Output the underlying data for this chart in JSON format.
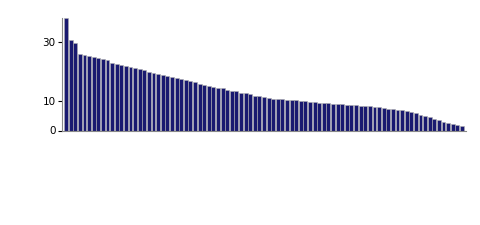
{
  "n_bars": 87,
  "bar_color": "#191970",
  "bar_edge_color": "#b0b0b0",
  "background_color": "#ffffff",
  "ylim": [
    0,
    38
  ],
  "yticks": [
    0,
    10,
    30
  ],
  "bar_width": 0.85,
  "values": [
    38.0,
    30.5,
    29.5,
    26.0,
    25.5,
    25.0,
    24.8,
    24.5,
    24.2,
    23.8,
    22.8,
    22.5,
    22.2,
    21.8,
    21.5,
    21.2,
    20.8,
    20.5,
    19.8,
    19.5,
    19.2,
    18.8,
    18.5,
    18.2,
    17.8,
    17.5,
    17.2,
    16.8,
    16.5,
    15.8,
    15.5,
    15.2,
    14.8,
    14.5,
    14.2,
    13.8,
    13.5,
    13.2,
    12.8,
    12.5,
    12.2,
    11.8,
    11.5,
    11.2,
    10.9,
    10.8,
    10.7,
    10.5,
    10.4,
    10.3,
    10.2,
    10.0,
    9.8,
    9.6,
    9.5,
    9.4,
    9.3,
    9.2,
    9.1,
    9.0,
    8.8,
    8.7,
    8.6,
    8.5,
    8.4,
    8.3,
    8.2,
    8.0,
    7.8,
    7.6,
    7.4,
    7.2,
    7.0,
    6.8,
    6.5,
    6.2,
    5.8,
    5.4,
    5.0,
    4.5,
    4.0,
    3.5,
    3.0,
    2.5,
    2.2,
    2.0,
    1.5
  ]
}
